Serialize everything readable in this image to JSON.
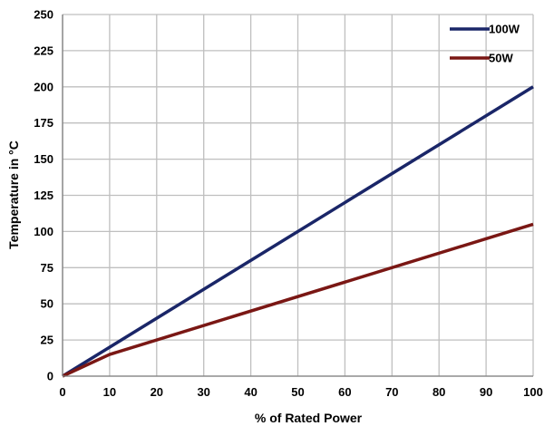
{
  "chart_data": {
    "type": "line",
    "xlabel": "% of Rated Power",
    "ylabel": "Temperature in °C",
    "xlim": [
      0,
      100
    ],
    "ylim": [
      0,
      250
    ],
    "xticks": [
      0,
      10,
      20,
      30,
      40,
      50,
      60,
      70,
      80,
      90,
      100
    ],
    "yticks": [
      0,
      25,
      50,
      75,
      100,
      125,
      150,
      175,
      200,
      225,
      250
    ],
    "grid": true,
    "legend_position": "top-right",
    "series": [
      {
        "name": "100W",
        "color": "#1a2668",
        "x": [
          0,
          100
        ],
        "y": [
          0,
          200
        ]
      },
      {
        "name": "50W",
        "color": "#7a1714",
        "x": [
          0,
          10,
          100
        ],
        "y": [
          0,
          15,
          105
        ]
      }
    ]
  }
}
